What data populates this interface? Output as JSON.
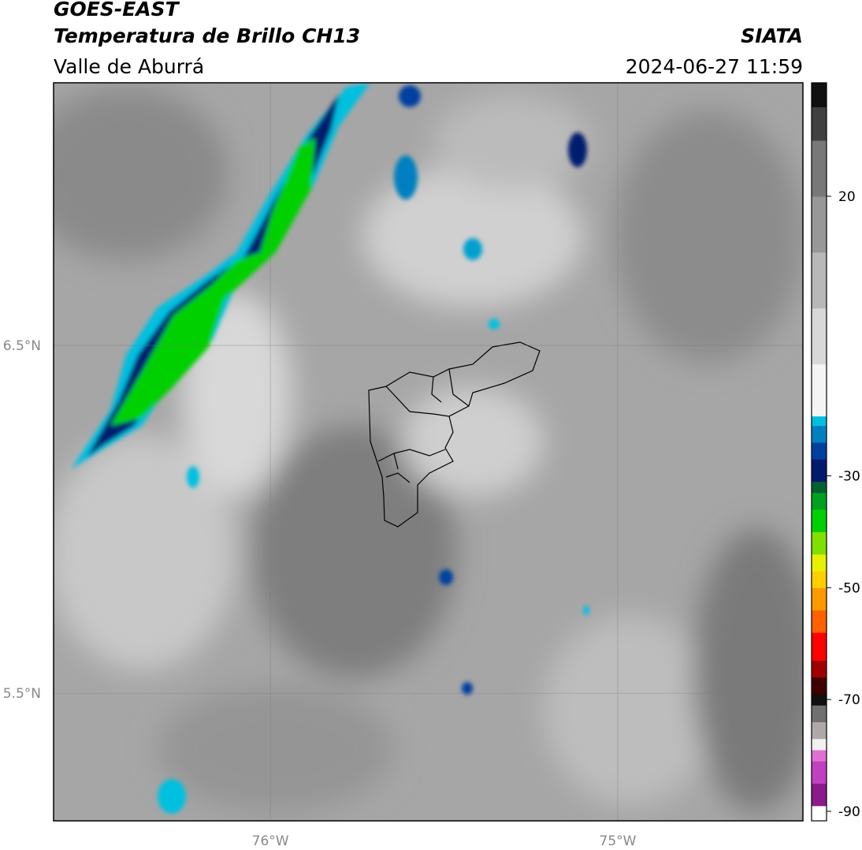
{
  "header": {
    "satellite": "GOES-EAST",
    "product": "Temperatura de Brillo CH13",
    "region": "Valle de Aburrá",
    "agency": "SIATA",
    "timestamp": "2024-06-27 11:59"
  },
  "map": {
    "xlim": [
      -76.624,
      -74.467
    ],
    "ylim": [
      5.133,
      7.255
    ],
    "xticks": [
      {
        "value": -76,
        "label": "76°W"
      },
      {
        "value": -75,
        "label": "75°W"
      }
    ],
    "yticks": [
      {
        "value": 6.5,
        "label": "6.5°N"
      },
      {
        "value": 5.5,
        "label": "5.5°N"
      }
    ],
    "grid": true
  },
  "colorbar": {
    "lim": [
      -91.7,
      40.3
    ],
    "ticks": [
      20,
      -30,
      -50,
      -70,
      -90
    ],
    "stops": [
      {
        "value": -91.7,
        "color": "#ffffff"
      },
      {
        "value": -89,
        "color": "#8b1a8b"
      },
      {
        "value": -85,
        "color": "#c040c0"
      },
      {
        "value": -81,
        "color": "#e070d0"
      },
      {
        "value": -79,
        "color": "#f0f0f0"
      },
      {
        "value": -77,
        "color": "#b0a8a8"
      },
      {
        "value": -74,
        "color": "#707070"
      },
      {
        "value": -71,
        "color": "#101010"
      },
      {
        "value": -69,
        "color": "#400000"
      },
      {
        "value": -66,
        "color": "#a00000"
      },
      {
        "value": -63,
        "color": "#ff0000"
      },
      {
        "value": -58,
        "color": "#ff6000"
      },
      {
        "value": -54,
        "color": "#ff9900"
      },
      {
        "value": -50,
        "color": "#ffd000"
      },
      {
        "value": -47,
        "color": "#e8f000"
      },
      {
        "value": -44,
        "color": "#80e000"
      },
      {
        "value": -40,
        "color": "#00d000"
      },
      {
        "value": -36,
        "color": "#00a020"
      },
      {
        "value": -33,
        "color": "#006030"
      },
      {
        "value": -31,
        "color": "#001a6e"
      },
      {
        "value": -27,
        "color": "#0040a0"
      },
      {
        "value": -24,
        "color": "#0080c0"
      },
      {
        "value": -21,
        "color": "#00c0e0"
      },
      {
        "value": -19.3,
        "color": "#f4f4f4"
      },
      {
        "value": -10,
        "color": "#d8d8d8"
      },
      {
        "value": 0,
        "color": "#b8b8b8"
      },
      {
        "value": 10,
        "color": "#989898"
      },
      {
        "value": 20,
        "color": "#787878"
      },
      {
        "value": 30,
        "color": "#404040"
      },
      {
        "value": 36,
        "color": "#101010"
      }
    ]
  }
}
